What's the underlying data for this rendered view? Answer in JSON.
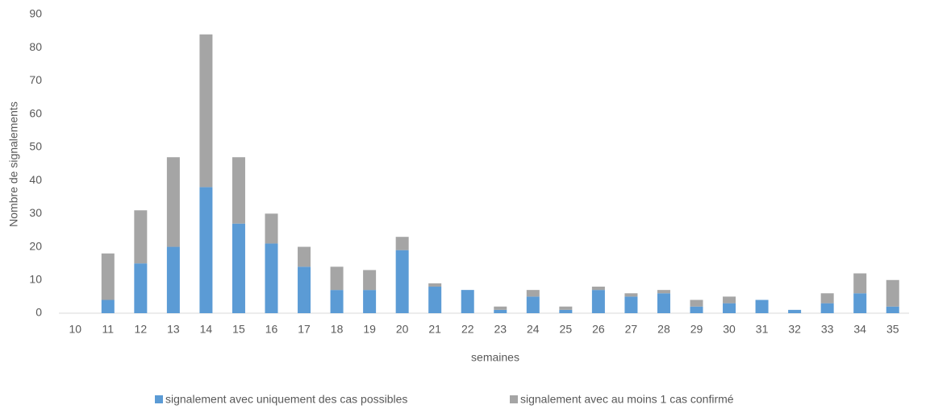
{
  "chart_data": {
    "type": "stacked-bar",
    "x_label": "semaines",
    "y_label": "Nombre de signalements",
    "categories": [
      "10",
      "11",
      "12",
      "13",
      "14",
      "15",
      "16",
      "17",
      "18",
      "19",
      "20",
      "21",
      "22",
      "23",
      "24",
      "25",
      "26",
      "27",
      "28",
      "29",
      "30",
      "31",
      "32",
      "33",
      "34",
      "35"
    ],
    "series": [
      {
        "name": "signalement avec uniquement des cas possibles",
        "color": "#5b9bd5",
        "values": [
          0,
          4,
          15,
          20,
          38,
          27,
          21,
          14,
          7,
          7,
          19,
          8,
          7,
          1,
          5,
          1,
          7,
          5,
          6,
          2,
          3,
          4,
          1,
          3,
          6,
          2
        ]
      },
      {
        "name": "signalement avec au moins 1 cas confirmé",
        "color": "#a5a5a5",
        "values": [
          0,
          14,
          16,
          27,
          46,
          20,
          9,
          6,
          7,
          6,
          4,
          1,
          0,
          1,
          2,
          1,
          1,
          1,
          1,
          2,
          2,
          0,
          0,
          3,
          6,
          8
        ]
      }
    ],
    "ylim": [
      0,
      90
    ],
    "yticks": [
      0,
      10,
      20,
      30,
      40,
      50,
      60,
      70,
      80,
      90
    ],
    "grid": false,
    "legend": "bottom"
  }
}
